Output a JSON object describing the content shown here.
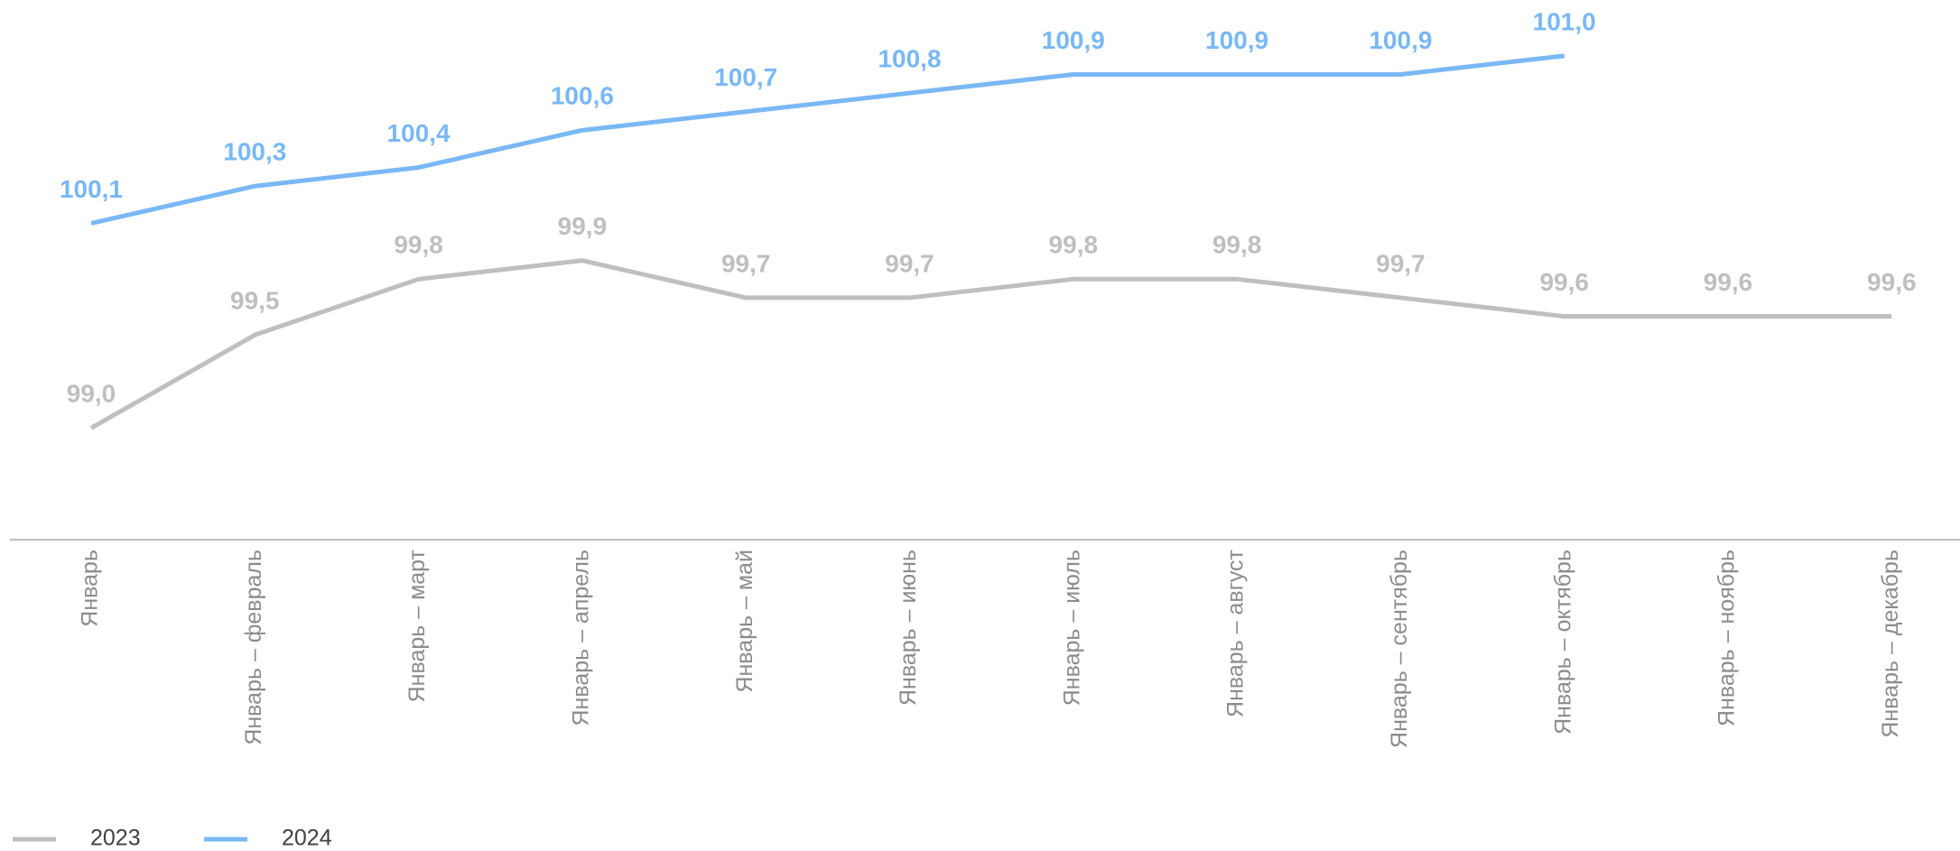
{
  "chart_data": {
    "type": "line",
    "categories": [
      "Январь",
      "Январь – февраль",
      "Январь – март",
      "Январь – апрель",
      "Январь – май",
      "Январь – июнь",
      "Январь – июль",
      "Январь – август",
      "Январь – сентябрь",
      "Январь – октябрь",
      "Январь – ноябрь",
      "Январь – декабрь"
    ],
    "series": [
      {
        "name": "2023",
        "color": "#bfbfbf",
        "values": [
          99.0,
          99.5,
          99.8,
          99.9,
          99.7,
          99.7,
          99.8,
          99.8,
          99.7,
          99.6,
          99.6,
          99.6
        ],
        "value_labels": [
          "99,0",
          "99,5",
          "99,8",
          "99,9",
          "99,7",
          "99,7",
          "99,8",
          "99,8",
          "99,7",
          "99,6",
          "99,6",
          "99,6"
        ]
      },
      {
        "name": "2024",
        "color": "#7ab8f5",
        "values": [
          100.1,
          100.3,
          100.4,
          100.6,
          100.7,
          100.8,
          100.9,
          100.9,
          100.9,
          101.0,
          null,
          null
        ],
        "value_labels": [
          "100,1",
          "100,3",
          "100,4",
          "100,6",
          "100,7",
          "100,8",
          "100,9",
          "100,9",
          "100,9",
          "101,0",
          null,
          null
        ]
      }
    ],
    "ylim": [
      98.4,
      101.3
    ],
    "grid": false,
    "legend": "bottom-left"
  }
}
